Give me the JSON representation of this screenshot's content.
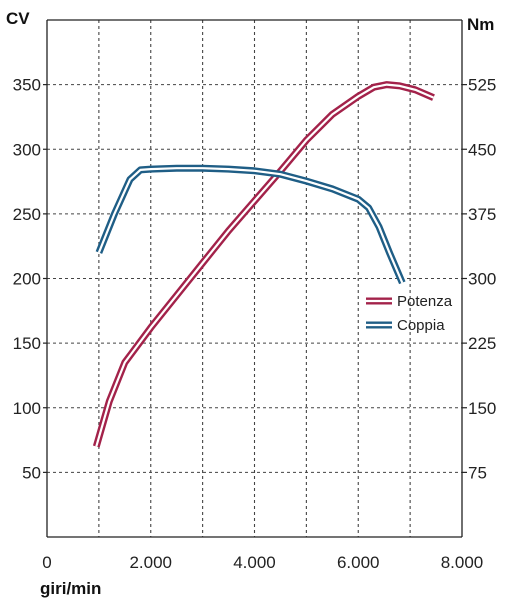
{
  "chart_data": {
    "type": "line",
    "title": "",
    "ylabel_left": "CV",
    "ylabel_right": "Nm",
    "xlabel": "giri/min",
    "xlim": [
      0,
      8000
    ],
    "ylim_left": [
      0,
      400
    ],
    "ylim_right": [
      0,
      600
    ],
    "x_ticks": [
      0,
      2000,
      4000,
      6000,
      8000
    ],
    "x_tick_labels": [
      "0",
      "2.000",
      "4.000",
      "6.000",
      "8.000"
    ],
    "y_left_ticks": [
      50,
      100,
      150,
      200,
      250,
      300,
      350
    ],
    "y_left_tick_labels": [
      "50",
      "100",
      "150",
      "200",
      "250",
      "300",
      "350"
    ],
    "y_right_ticks": [
      75,
      150,
      225,
      300,
      375,
      450,
      525
    ],
    "y_right_tick_labels": [
      "75",
      "150",
      "225",
      "300",
      "375",
      "450",
      "525"
    ],
    "grid": true,
    "legend_position": "right",
    "series": [
      {
        "name": "Potenza",
        "axis": "left",
        "color": "#a3224a",
        "x": [
          950,
          1200,
          1500,
          2000,
          2500,
          3000,
          3500,
          4000,
          4500,
          5000,
          5500,
          6000,
          6300,
          6550,
          6800,
          7100,
          7450
        ],
        "values": [
          70,
          105,
          135,
          162,
          187,
          212,
          237,
          260,
          283,
          307,
          327,
          341,
          348,
          350,
          349,
          346,
          340
        ]
      },
      {
        "name": "Coppia",
        "axis": "right",
        "color": "#1f5e86",
        "x": [
          1000,
          1300,
          1600,
          1800,
          2000,
          2500,
          3000,
          3500,
          4000,
          4500,
          5000,
          5500,
          6000,
          6200,
          6400,
          6600,
          6850
        ],
        "values": [
          330,
          375,
          415,
          426,
          427,
          428,
          428,
          427,
          425,
          421,
          413,
          404,
          392,
          382,
          360,
          330,
          295
        ]
      }
    ]
  }
}
